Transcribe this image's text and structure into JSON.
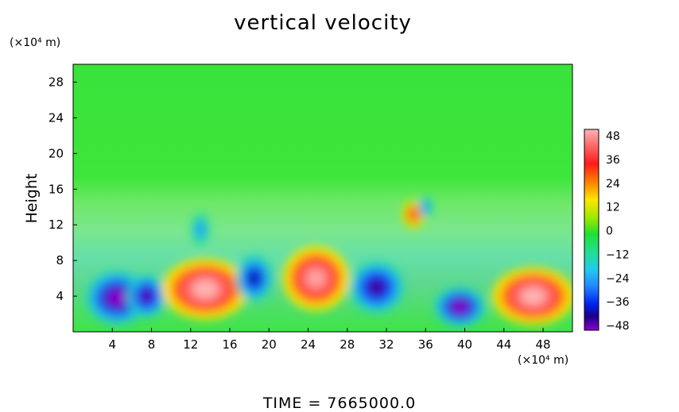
{
  "chart_data": {
    "type": "heatmap",
    "title": "vertical velocity",
    "ylabel": "Height",
    "y_unit": "(×10⁴ m)",
    "x_unit": "(×10⁴ m)",
    "footer": "TIME  =  7665000.0",
    "xlim": [
      0,
      51
    ],
    "ylim": [
      0,
      30
    ],
    "xticks": [
      "4",
      "8",
      "12",
      "16",
      "20",
      "24",
      "28",
      "32",
      "36",
      "40",
      "44",
      "48"
    ],
    "yticks": [
      "4",
      "8",
      "12",
      "16",
      "20",
      "24",
      "28"
    ],
    "colorbar": {
      "range": [
        -48,
        48
      ],
      "ticks": [
        "48",
        "36",
        "24",
        "12",
        "0",
        "−12",
        "−24",
        "−36",
        "−48"
      ]
    },
    "features": [
      {
        "x": 4.5,
        "y": 3.8,
        "value": -48
      },
      {
        "x": 7.5,
        "y": 4.0,
        "value": -45
      },
      {
        "x": 13.5,
        "y": 4.8,
        "value": 48
      },
      {
        "x": 18.5,
        "y": 6.0,
        "value": -40
      },
      {
        "x": 24.8,
        "y": 6.0,
        "value": 46
      },
      {
        "x": 31.0,
        "y": 5.0,
        "value": -44
      },
      {
        "x": 39.5,
        "y": 2.8,
        "value": -48
      },
      {
        "x": 47.0,
        "y": 4.0,
        "value": 48
      },
      {
        "x": 13.0,
        "y": 11.5,
        "value": -26
      },
      {
        "x": 34.8,
        "y": 13.2,
        "value": 30
      },
      {
        "x": 36.0,
        "y": 14.0,
        "value": -28
      }
    ]
  }
}
